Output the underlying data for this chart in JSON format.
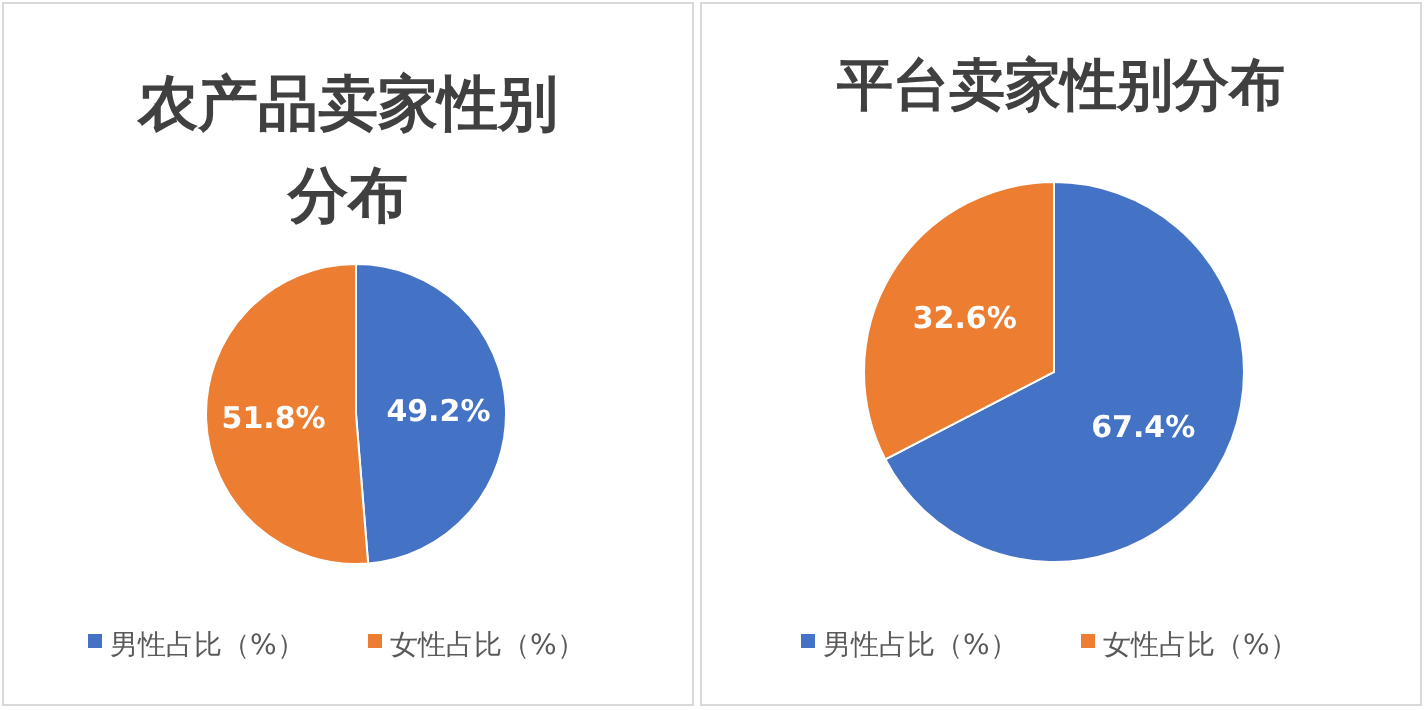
{
  "chart_data": [
    {
      "type": "pie",
      "title": "农产品卖家性别分布",
      "categories": [
        "男性占比（%）",
        "女性占比（%）"
      ],
      "values": [
        49.2,
        51.8
      ],
      "colors": [
        "#4472c4",
        "#ed7d31"
      ],
      "value_labels": [
        "49.2%",
        "51.8%"
      ],
      "legend": "bottom"
    },
    {
      "type": "pie",
      "title": "平台卖家性别分布",
      "categories": [
        "男性占比（%）",
        "女性占比（%）"
      ],
      "values": [
        67.4,
        32.6
      ],
      "colors": [
        "#4472c4",
        "#ed7d31"
      ],
      "value_labels": [
        "67.4%",
        "32.6%"
      ],
      "legend": "bottom"
    }
  ]
}
